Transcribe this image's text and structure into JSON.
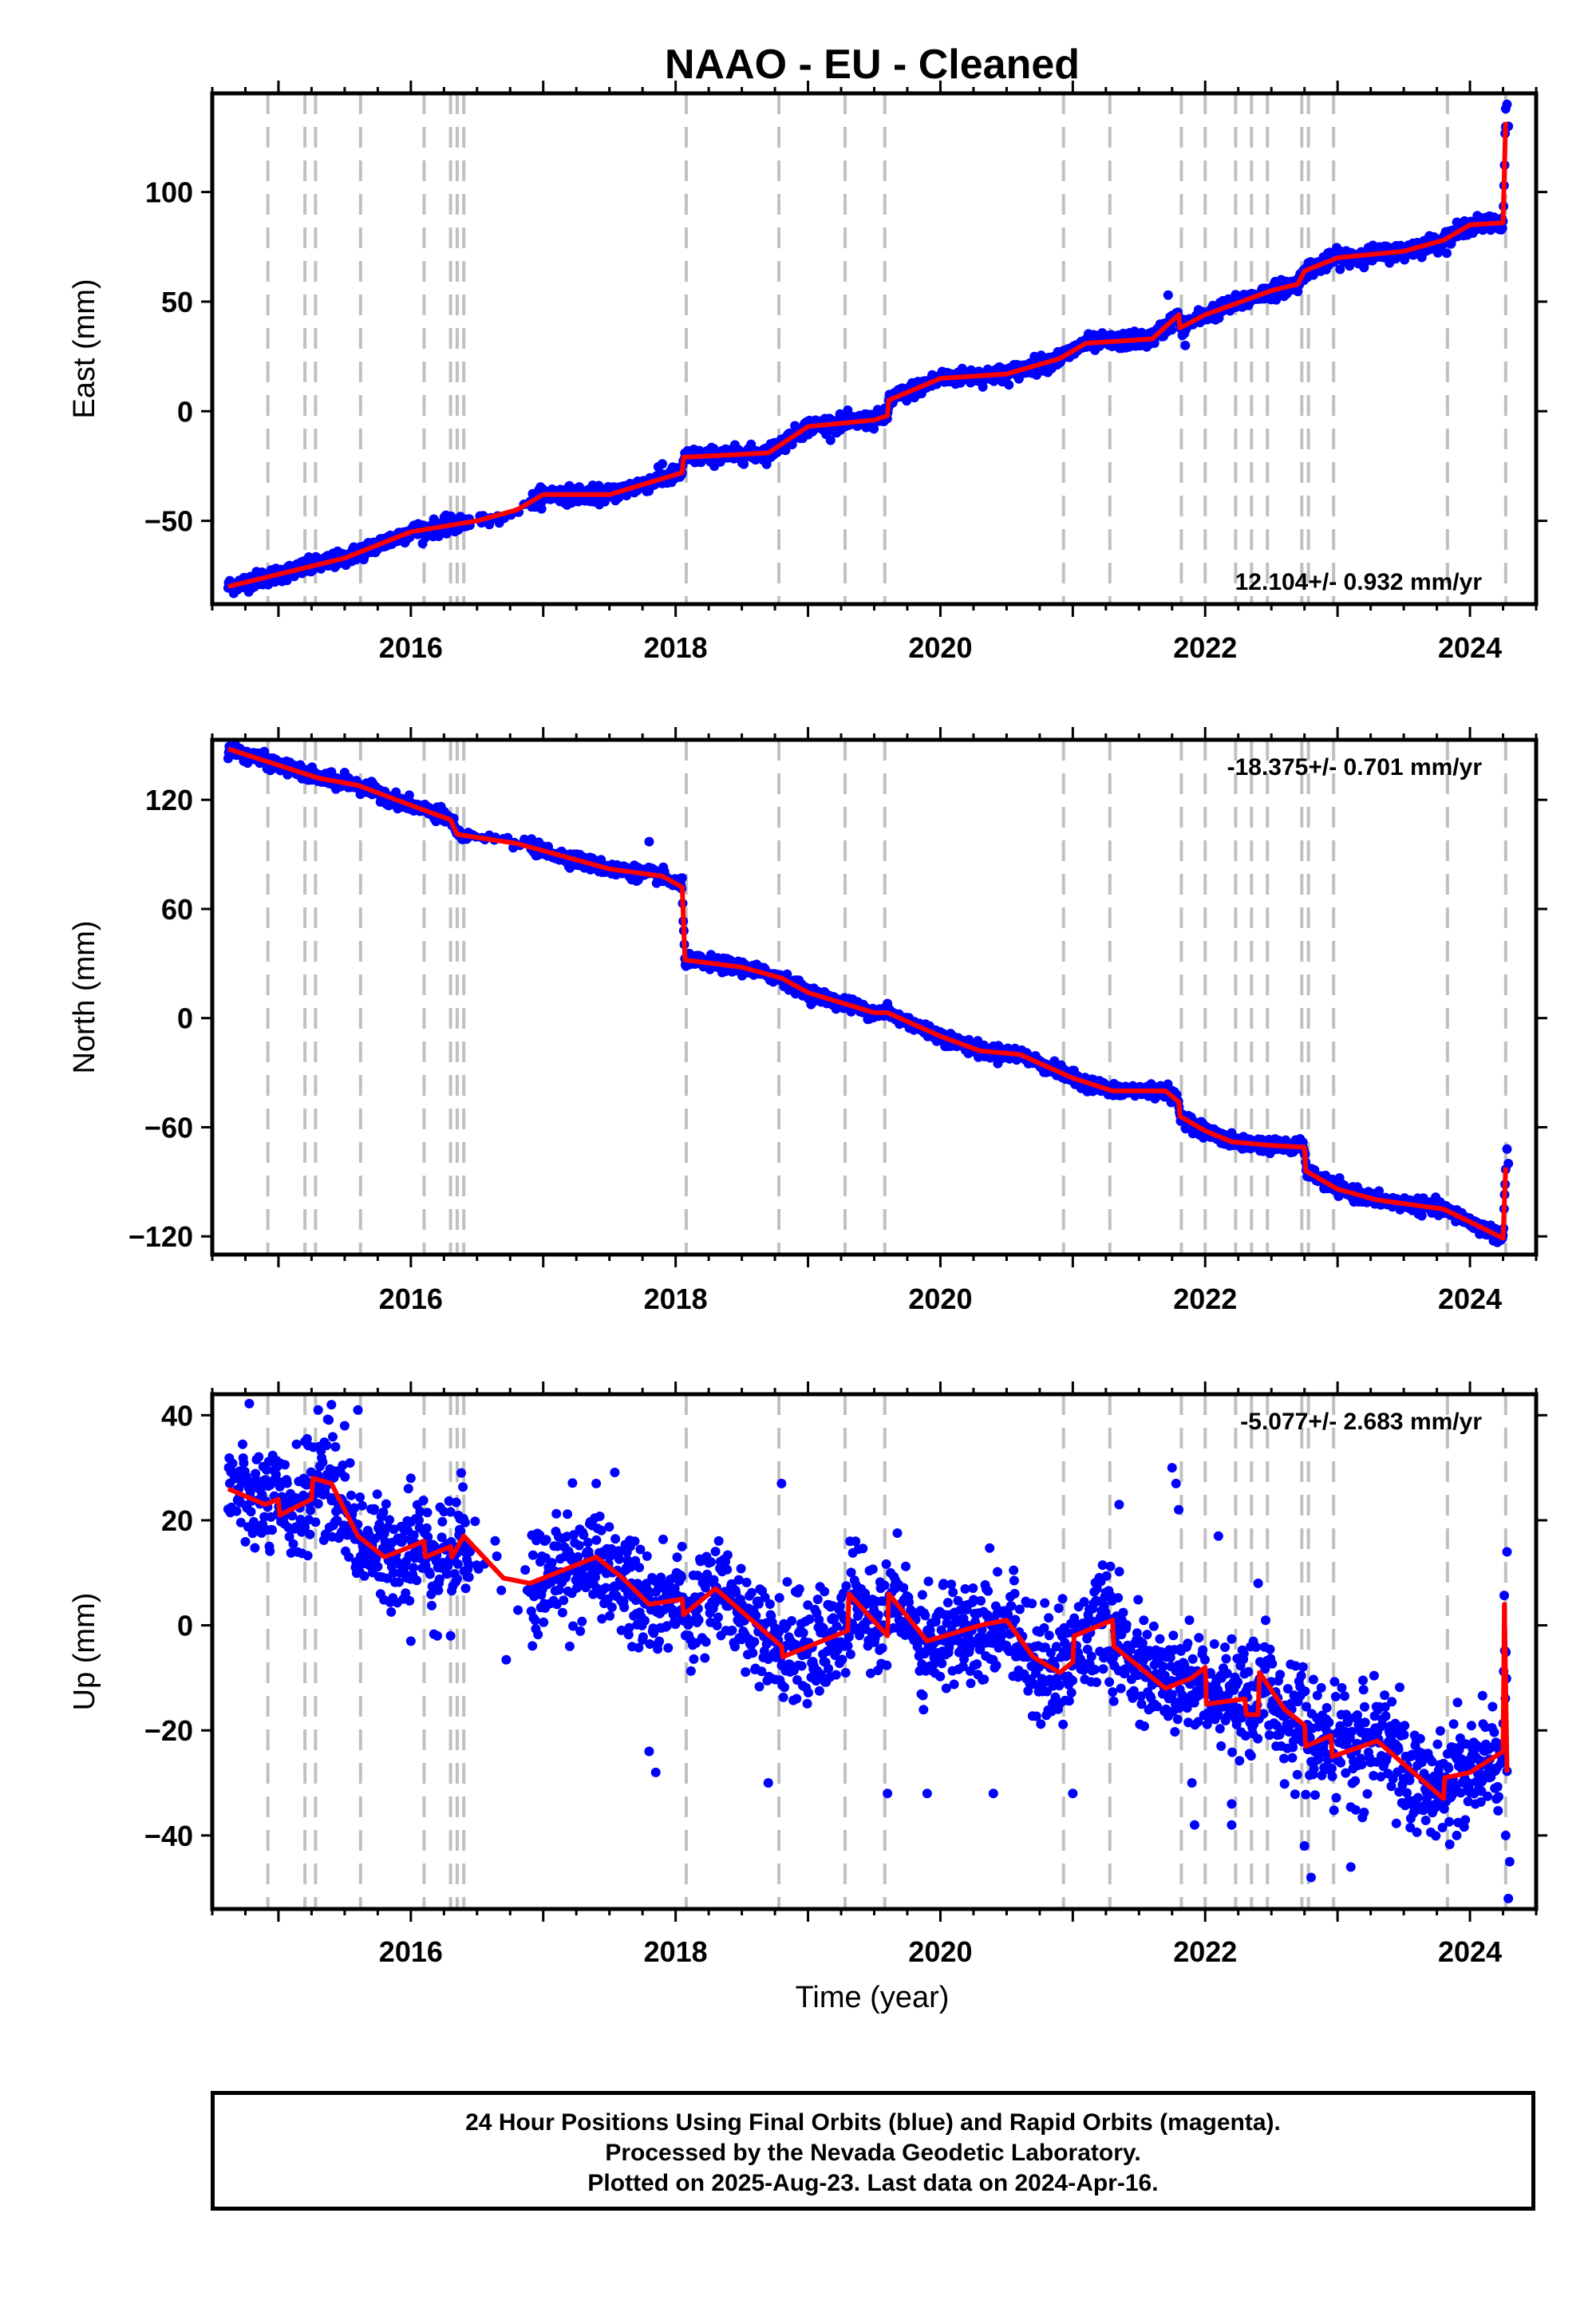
{
  "title": "NAAO  - EU - Cleaned",
  "xlabel": "Time (year)",
  "footer": {
    "line1": "24 Hour Positions Using Final Orbits (blue) and Rapid Orbits (magenta).",
    "line2": "Processed by the Nevada Geodetic Laboratory.",
    "line3": "Plotted on 2025-Aug-23. Last data on 2024-Apr-16."
  },
  "colors": {
    "data": "#0000ff",
    "model": "#ff0000",
    "steps": "#c0c0c0"
  },
  "chart_data": [
    {
      "type": "scatter",
      "name_panel": "east",
      "ylabel": "East (mm)",
      "rate_text": "12.104+/- 0.932 mm/yr",
      "rate_position": "bottom-right",
      "xlim": [
        2014.5,
        2024.5
      ],
      "ylim": [
        -88,
        145
      ],
      "yticks": [
        -50,
        0,
        50,
        100
      ],
      "xticks": [
        2016,
        2018,
        2020,
        2022,
        2024
      ],
      "noise_mm": 1.8,
      "model": [
        [
          2014.62,
          -80
        ],
        [
          2015.5,
          -67
        ],
        [
          2016.0,
          -55
        ],
        [
          2016.5,
          -50
        ],
        [
          2016.8,
          -45
        ],
        [
          2017.0,
          -38
        ],
        [
          2017.5,
          -38
        ],
        [
          2018.05,
          -28
        ],
        [
          2018.06,
          -21
        ],
        [
          2018.7,
          -19
        ],
        [
          2019.0,
          -7
        ],
        [
          2019.5,
          -4
        ],
        [
          2019.6,
          -2
        ],
        [
          2019.61,
          5
        ],
        [
          2020.0,
          15
        ],
        [
          2020.5,
          17
        ],
        [
          2020.9,
          24
        ],
        [
          2021.1,
          31
        ],
        [
          2021.6,
          33
        ],
        [
          2021.8,
          44
        ],
        [
          2021.81,
          38
        ],
        [
          2022.0,
          44
        ],
        [
          2022.5,
          55
        ],
        [
          2022.7,
          58
        ],
        [
          2022.75,
          64
        ],
        [
          2023.0,
          70
        ],
        [
          2023.5,
          73
        ],
        [
          2023.8,
          78
        ],
        [
          2024.0,
          85
        ],
        [
          2024.25,
          86
        ],
        [
          2024.27,
          132
        ]
      ],
      "outliers": [
        [
          2021.72,
          53
        ],
        [
          2021.85,
          30
        ],
        [
          2024.27,
          138
        ],
        [
          2024.28,
          140
        ],
        [
          2024.29,
          130
        ],
        [
          2017.9,
          -24
        ],
        [
          2015.2,
          -72
        ]
      ]
    },
    {
      "type": "scatter",
      "name_panel": "north",
      "ylabel": "North (mm)",
      "rate_text": "-18.375+/- 0.701 mm/yr",
      "rate_position": "top-right",
      "xlim": [
        2014.5,
        2024.5
      ],
      "ylim": [
        -130,
        153
      ],
      "yticks": [
        -120,
        -60,
        0,
        60,
        120
      ],
      "xticks": [
        2016,
        2018,
        2020,
        2022,
        2024
      ],
      "noise_mm": 1.8,
      "model": [
        [
          2014.62,
          148
        ],
        [
          2015.3,
          132
        ],
        [
          2015.6,
          128
        ],
        [
          2016.0,
          117
        ],
        [
          2016.3,
          109
        ],
        [
          2016.35,
          101
        ],
        [
          2016.8,
          96
        ],
        [
          2017.0,
          92
        ],
        [
          2017.5,
          82
        ],
        [
          2017.9,
          78
        ],
        [
          2018.05,
          72
        ],
        [
          2018.07,
          32
        ],
        [
          2018.5,
          28
        ],
        [
          2018.8,
          22
        ],
        [
          2019.0,
          14
        ],
        [
          2019.5,
          3
        ],
        [
          2019.6,
          3
        ],
        [
          2020.0,
          -10
        ],
        [
          2020.3,
          -18
        ],
        [
          2020.6,
          -20
        ],
        [
          2021.0,
          -33
        ],
        [
          2021.3,
          -40
        ],
        [
          2021.7,
          -40
        ],
        [
          2021.8,
          -46
        ],
        [
          2021.81,
          -54
        ],
        [
          2022.0,
          -62
        ],
        [
          2022.2,
          -68
        ],
        [
          2022.5,
          -70
        ],
        [
          2022.75,
          -71
        ],
        [
          2022.76,
          -84
        ],
        [
          2023.0,
          -94
        ],
        [
          2023.3,
          -100
        ],
        [
          2023.8,
          -105
        ],
        [
          2024.0,
          -112
        ],
        [
          2024.25,
          -121
        ],
        [
          2024.27,
          -82
        ]
      ],
      "outliers": [
        [
          2017.8,
          97
        ],
        [
          2016.2,
          116
        ],
        [
          2015.5,
          135
        ],
        [
          2024.28,
          -72
        ],
        [
          2024.29,
          -80
        ],
        [
          2019.6,
          8
        ]
      ]
    },
    {
      "type": "scatter",
      "name_panel": "up",
      "ylabel": "Up (mm)",
      "rate_text": "-5.077+/- 2.683 mm/yr",
      "rate_position": "top-right",
      "xlim": [
        2014.5,
        2024.5
      ],
      "ylim": [
        -54,
        44
      ],
      "yticks": [
        -40,
        -20,
        0,
        20,
        40
      ],
      "xticks": [
        2016,
        2018,
        2020,
        2022,
        2024
      ],
      "noise_mm": 5.0,
      "model": [
        [
          2014.62,
          26
        ],
        [
          2014.9,
          23
        ],
        [
          2015.0,
          24
        ],
        [
          2015.01,
          21
        ],
        [
          2015.25,
          24
        ],
        [
          2015.26,
          28
        ],
        [
          2015.4,
          27
        ],
        [
          2015.6,
          17
        ],
        [
          2015.8,
          13
        ],
        [
          2016.1,
          16
        ],
        [
          2016.11,
          13
        ],
        [
          2016.3,
          15
        ],
        [
          2016.31,
          13
        ],
        [
          2016.4,
          17
        ],
        [
          2016.7,
          9
        ],
        [
          2016.9,
          8
        ],
        [
          2017.4,
          13
        ],
        [
          2017.6,
          9
        ],
        [
          2017.8,
          4
        ],
        [
          2018.05,
          5
        ],
        [
          2018.06,
          2
        ],
        [
          2018.3,
          7
        ],
        [
          2018.8,
          -4
        ],
        [
          2018.81,
          -6
        ],
        [
          2019.3,
          -1
        ],
        [
          2019.31,
          6
        ],
        [
          2019.6,
          -2
        ],
        [
          2019.61,
          6
        ],
        [
          2019.9,
          -3
        ],
        [
          2020.3,
          0
        ],
        [
          2020.5,
          1
        ],
        [
          2020.7,
          -6
        ],
        [
          2020.9,
          -9
        ],
        [
          2021.0,
          -7
        ],
        [
          2021.01,
          -2
        ],
        [
          2021.3,
          1
        ],
        [
          2021.31,
          -4
        ],
        [
          2021.7,
          -12
        ],
        [
          2021.9,
          -10
        ],
        [
          2022.0,
          -8
        ],
        [
          2022.01,
          -15
        ],
        [
          2022.3,
          -14
        ],
        [
          2022.31,
          -17
        ],
        [
          2022.4,
          -17
        ],
        [
          2022.41,
          -9
        ],
        [
          2022.6,
          -16
        ],
        [
          2022.75,
          -19
        ],
        [
          2022.76,
          -23
        ],
        [
          2022.95,
          -21
        ],
        [
          2022.96,
          -25
        ],
        [
          2023.3,
          -22
        ],
        [
          2023.8,
          -33
        ],
        [
          2023.81,
          -29
        ],
        [
          2024.0,
          -28
        ],
        [
          2024.25,
          -24
        ],
        [
          2024.26,
          4
        ],
        [
          2024.28,
          -28
        ]
      ],
      "outliers": [
        [
          2015.6,
          41
        ],
        [
          2015.4,
          42
        ],
        [
          2015.3,
          41
        ],
        [
          2015.5,
          38
        ],
        [
          2015.2,
          35
        ],
        [
          2016.0,
          28
        ],
        [
          2017.4,
          27
        ],
        [
          2017.8,
          -24
        ],
        [
          2017.85,
          -28
        ],
        [
          2018.8,
          27
        ],
        [
          2018.7,
          -30
        ],
        [
          2019.6,
          -32
        ],
        [
          2019.9,
          -32
        ],
        [
          2020.4,
          -32
        ],
        [
          2021.0,
          -32
        ],
        [
          2021.35,
          23
        ],
        [
          2021.75,
          30
        ],
        [
          2021.78,
          27
        ],
        [
          2021.8,
          22
        ],
        [
          2021.9,
          -30
        ],
        [
          2021.92,
          -38
        ],
        [
          2022.1,
          17
        ],
        [
          2022.2,
          -34
        ],
        [
          2022.4,
          8
        ],
        [
          2022.75,
          -42
        ],
        [
          2022.8,
          -48
        ],
        [
          2023.1,
          -46
        ],
        [
          2023.9,
          -40
        ],
        [
          2024.28,
          14
        ],
        [
          2024.29,
          -52
        ],
        [
          2024.3,
          -45
        ],
        [
          2024.27,
          -40
        ],
        [
          2022.2,
          -38
        ],
        [
          2016.2,
          -2
        ],
        [
          2016.3,
          -2
        ],
        [
          2017.2,
          -4
        ],
        [
          2016.0,
          -3
        ]
      ]
    }
  ],
  "step_lines": [
    2014.92,
    2015.2,
    2015.28,
    2015.62,
    2016.1,
    2016.3,
    2016.35,
    2016.4,
    2018.08,
    2018.78,
    2019.28,
    2019.58,
    2020.93,
    2021.28,
    2021.82,
    2022.0,
    2022.23,
    2022.35,
    2022.47,
    2022.73,
    2022.78,
    2022.97,
    2023.83,
    2024.27
  ]
}
